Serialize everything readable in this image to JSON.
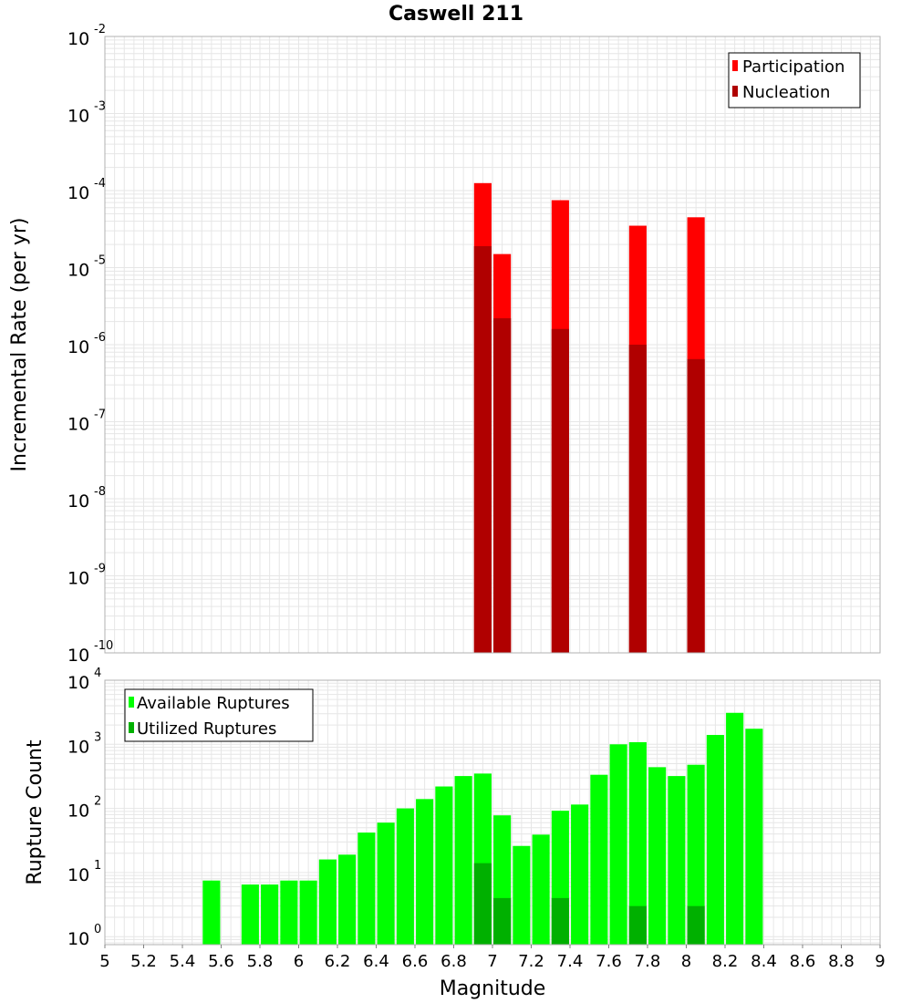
{
  "title": "Caswell 211",
  "colors": {
    "participation": "#ff0000",
    "nucleation": "#b00000",
    "available": "#00ff00",
    "utilized": "#00b000",
    "grid": "#e6e6e6",
    "frame": "#b0b0b0"
  },
  "chart_data": [
    {
      "type": "bar",
      "panel": "top",
      "scale": "log",
      "ylabel": "Incremental Rate (per yr)",
      "ylim": [
        1e-10,
        0.01
      ],
      "yticks": [
        {
          "base": "10",
          "exp": "-10"
        },
        {
          "base": "10",
          "exp": "-9"
        },
        {
          "base": "10",
          "exp": "-8"
        },
        {
          "base": "10",
          "exp": "-7"
        },
        {
          "base": "10",
          "exp": "-6"
        },
        {
          "base": "10",
          "exp": "-5"
        },
        {
          "base": "10",
          "exp": "-4"
        },
        {
          "base": "10",
          "exp": "-3"
        },
        {
          "base": "10",
          "exp": "-2"
        }
      ],
      "legend": {
        "position": "top-right",
        "entries": [
          "Participation",
          "Nucleation"
        ]
      },
      "series": [
        {
          "name": "Participation",
          "x": [
            6.95,
            7.05,
            7.35,
            7.75,
            8.05
          ],
          "values": [
            0.000125,
            1.5e-05,
            7.5e-05,
            3.5e-05,
            4.5e-05
          ]
        },
        {
          "name": "Nucleation",
          "x": [
            6.95,
            7.05,
            7.35,
            7.75,
            8.05
          ],
          "values": [
            1.9e-05,
            2.2e-06,
            1.6e-06,
            1e-06,
            6.5e-07
          ]
        }
      ]
    },
    {
      "type": "bar",
      "panel": "bottom",
      "scale": "log",
      "ylabel": "Rupture Count",
      "xlabel": "Magnitude",
      "ylim": [
        0.75,
        10000
      ],
      "yticks": [
        {
          "base": "10",
          "exp": "0"
        },
        {
          "base": "10",
          "exp": "1"
        },
        {
          "base": "10",
          "exp": "2"
        },
        {
          "base": "10",
          "exp": "3"
        },
        {
          "base": "10",
          "exp": "4"
        }
      ],
      "xlim": [
        5,
        9
      ],
      "xticks": [
        "5",
        "5.2",
        "5.4",
        "5.6",
        "5.8",
        "6",
        "6.2",
        "6.4",
        "6.6",
        "6.8",
        "7",
        "7.2",
        "7.4",
        "7.6",
        "7.8",
        "8",
        "8.2",
        "8.4",
        "8.6",
        "8.8",
        "9"
      ],
      "legend": {
        "position": "top-left",
        "entries": [
          "Available Ruptures",
          "Utilized Ruptures"
        ]
      },
      "series": [
        {
          "name": "Available Ruptures",
          "x": [
            5.55,
            5.75,
            5.85,
            5.95,
            6.05,
            6.15,
            6.25,
            6.35,
            6.45,
            6.55,
            6.65,
            6.75,
            6.85,
            6.95,
            7.05,
            7.15,
            7.25,
            7.35,
            7.45,
            7.55,
            7.65,
            7.75,
            7.85,
            7.95,
            8.05,
            8.15,
            8.25,
            8.35
          ],
          "values": [
            7.5,
            6.5,
            6.5,
            7.5,
            7.5,
            16,
            19,
            42,
            60,
            100,
            140,
            220,
            320,
            350,
            78,
            26,
            39,
            92,
            115,
            335,
            1000,
            1080,
            440,
            320,
            480,
            1400,
            3100,
            1750
          ]
        },
        {
          "name": "Utilized Ruptures",
          "x": [
            6.95,
            7.05,
            7.35,
            7.75,
            8.05
          ],
          "values": [
            14,
            4,
            4,
            3,
            3
          ]
        }
      ]
    }
  ]
}
